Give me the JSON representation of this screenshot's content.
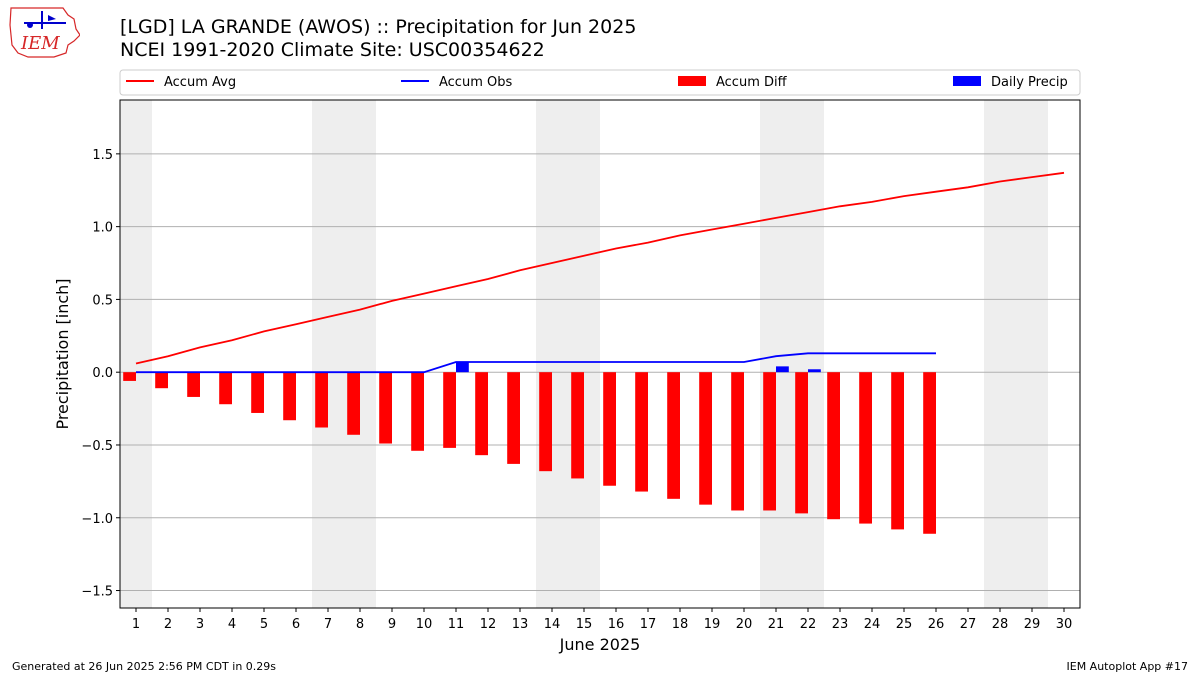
{
  "header": {
    "title_line1": "[LGD] LA GRANDE (AWOS) :: Precipitation for Jun 2025",
    "title_line2": "NCEI 1991-2020 Climate Site: USC00354622",
    "logo_text": "IEM"
  },
  "footer": {
    "left": "Generated at 26 Jun 2025 2:56 PM CDT in 0.29s",
    "right": "IEM Autoplot App #17"
  },
  "colors": {
    "avg": "#ff0000",
    "obs": "#0000ff",
    "diff": "#ff0000",
    "daily": "#0000ff",
    "weekend_shade": "#eeeeee",
    "grid": "#b0b0b0",
    "logo": "#d62728"
  },
  "chart_data": {
    "type": "bar",
    "title": "[LGD] LA GRANDE (AWOS) :: Precipitation for Jun 2025",
    "subtitle": "NCEI 1991-2020 Climate Site: USC00354622",
    "xlabel": "June 2025",
    "ylabel": "Precipitation [inch]",
    "ylim": [
      -1.62,
      1.87
    ],
    "xlim": [
      0.5,
      30.5
    ],
    "y_ticks": [
      -1.5,
      -1.0,
      -0.5,
      0.0,
      0.5,
      1.0,
      1.5
    ],
    "y_tick_labels": [
      "−1.5",
      "−1.0",
      "−0.5",
      "0.0",
      "0.5",
      "1.0",
      "1.5"
    ],
    "x_ticks": [
      1,
      2,
      3,
      4,
      5,
      6,
      7,
      8,
      9,
      10,
      11,
      12,
      13,
      14,
      15,
      16,
      17,
      18,
      19,
      20,
      21,
      22,
      23,
      24,
      25,
      26,
      27,
      28,
      29,
      30
    ],
    "x_tick_labels": [
      "1",
      "2",
      "3",
      "4",
      "5",
      "6",
      "7",
      "8",
      "9",
      "10",
      "11",
      "12",
      "13",
      "14",
      "15",
      "16",
      "17",
      "18",
      "19",
      "20",
      "21",
      "22",
      "23",
      "24",
      "25",
      "26",
      "27",
      "28",
      "29",
      "30"
    ],
    "grid": "horizontal",
    "legend_position": "top",
    "weekend_shading": [
      [
        0.5,
        1.5
      ],
      [
        6.5,
        8.5
      ],
      [
        13.5,
        15.5
      ],
      [
        20.5,
        22.5
      ],
      [
        27.5,
        29.5
      ]
    ],
    "series": [
      {
        "name": "Accum Avg",
        "kind": "line",
        "x": [
          1,
          2,
          3,
          4,
          5,
          6,
          7,
          8,
          9,
          10,
          11,
          12,
          13,
          14,
          15,
          16,
          17,
          18,
          19,
          20,
          21,
          22,
          23,
          24,
          25,
          26,
          27,
          28,
          29,
          30
        ],
        "values": [
          0.06,
          0.11,
          0.17,
          0.22,
          0.28,
          0.33,
          0.38,
          0.43,
          0.49,
          0.54,
          0.59,
          0.64,
          0.7,
          0.75,
          0.8,
          0.85,
          0.89,
          0.94,
          0.98,
          1.02,
          1.06,
          1.1,
          1.14,
          1.17,
          1.21,
          1.24,
          1.27,
          1.31,
          1.34,
          1.37
        ]
      },
      {
        "name": "Accum Obs",
        "kind": "line",
        "x": [
          1,
          2,
          3,
          4,
          5,
          6,
          7,
          8,
          9,
          10,
          11,
          12,
          13,
          14,
          15,
          16,
          17,
          18,
          19,
          20,
          21,
          22,
          23,
          24,
          25,
          26
        ],
        "values": [
          0,
          0,
          0,
          0,
          0,
          0,
          0,
          0,
          0,
          0,
          0.07,
          0.07,
          0.07,
          0.07,
          0.07,
          0.07,
          0.07,
          0.07,
          0.07,
          0.07,
          0.11,
          0.13,
          0.13,
          0.13,
          0.13,
          0.13
        ]
      },
      {
        "name": "Accum Diff",
        "kind": "bar",
        "x": [
          1,
          2,
          3,
          4,
          5,
          6,
          7,
          8,
          9,
          10,
          11,
          12,
          13,
          14,
          15,
          16,
          17,
          18,
          19,
          20,
          21,
          22,
          23,
          24,
          25,
          26
        ],
        "values": [
          -0.06,
          -0.11,
          -0.17,
          -0.22,
          -0.28,
          -0.33,
          -0.38,
          -0.43,
          -0.49,
          -0.54,
          -0.52,
          -0.57,
          -0.63,
          -0.68,
          -0.73,
          -0.78,
          -0.82,
          -0.87,
          -0.91,
          -0.95,
          -0.95,
          -0.97,
          -1.01,
          -1.04,
          -1.08,
          -1.11
        ]
      },
      {
        "name": "Daily Precip",
        "kind": "bar",
        "x": [
          1,
          2,
          3,
          4,
          5,
          6,
          7,
          8,
          9,
          10,
          11,
          12,
          13,
          14,
          15,
          16,
          17,
          18,
          19,
          20,
          21,
          22,
          23,
          24,
          25,
          26
        ],
        "values": [
          0,
          0,
          0,
          0,
          0,
          0,
          0,
          0,
          0,
          0,
          0.07,
          0,
          0,
          0,
          0,
          0,
          0,
          0,
          0,
          0,
          0.04,
          0.02,
          0,
          0,
          0,
          0
        ]
      }
    ]
  }
}
